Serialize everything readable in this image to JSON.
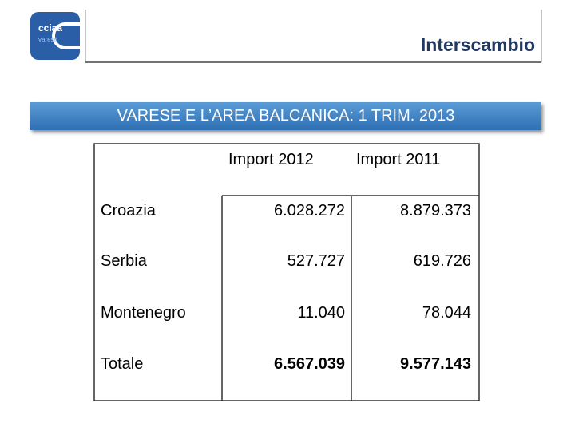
{
  "header": {
    "logo": [
      "cciaa",
      "varese"
    ],
    "title": "Interscambio"
  },
  "banner": "VARESE E L’AREA BALCANICA: 1 TRIM. 2013",
  "table": {
    "columns": [
      "Import 2012",
      "Import 2011"
    ],
    "rows": [
      [
        "Croazia",
        "6.028.272",
        "8.879.373"
      ],
      [
        "Serbia",
        "527.727",
        "619.726"
      ],
      [
        "Montenegro",
        "11.040",
        "78.044"
      ],
      [
        "Totale",
        "6.567.039",
        "9.577.143"
      ]
    ]
  }
}
